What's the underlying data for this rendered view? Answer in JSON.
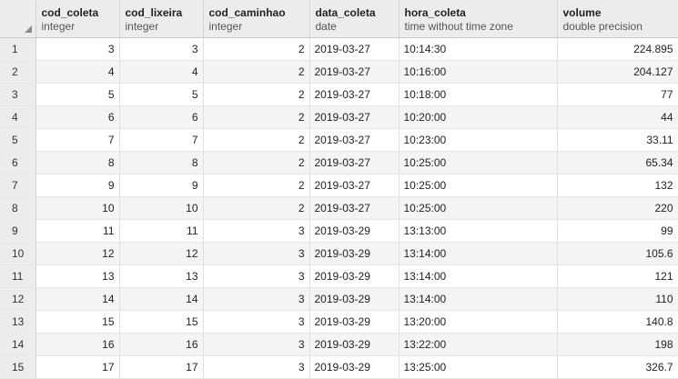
{
  "columns": [
    {
      "name": "cod_coleta",
      "type": "integer"
    },
    {
      "name": "cod_lixeira",
      "type": "integer"
    },
    {
      "name": "cod_caminhao",
      "type": "integer"
    },
    {
      "name": "data_coleta",
      "type": "date"
    },
    {
      "name": "hora_coleta",
      "type": "time without time zone"
    },
    {
      "name": "volume",
      "type": "double precision"
    }
  ],
  "rows": [
    {
      "n": "1",
      "cells": [
        "3",
        "3",
        "2",
        "2019-03-27",
        "10:14:30",
        "224.895"
      ]
    },
    {
      "n": "2",
      "cells": [
        "4",
        "4",
        "2",
        "2019-03-27",
        "10:16:00",
        "204.127"
      ]
    },
    {
      "n": "3",
      "cells": [
        "5",
        "5",
        "2",
        "2019-03-27",
        "10:18:00",
        "77"
      ]
    },
    {
      "n": "4",
      "cells": [
        "6",
        "6",
        "2",
        "2019-03-27",
        "10:20:00",
        "44"
      ]
    },
    {
      "n": "5",
      "cells": [
        "7",
        "7",
        "2",
        "2019-03-27",
        "10:23:00",
        "33.11"
      ]
    },
    {
      "n": "6",
      "cells": [
        "8",
        "8",
        "2",
        "2019-03-27",
        "10:25:00",
        "65.34"
      ]
    },
    {
      "n": "7",
      "cells": [
        "9",
        "9",
        "2",
        "2019-03-27",
        "10:25:00",
        "132"
      ]
    },
    {
      "n": "8",
      "cells": [
        "10",
        "10",
        "2",
        "2019-03-27",
        "10:25:00",
        "220"
      ]
    },
    {
      "n": "9",
      "cells": [
        "11",
        "11",
        "3",
        "2019-03-29",
        "13:13:00",
        "99"
      ]
    },
    {
      "n": "10",
      "cells": [
        "12",
        "12",
        "3",
        "2019-03-29",
        "13:14:00",
        "105.6"
      ]
    },
    {
      "n": "11",
      "cells": [
        "13",
        "13",
        "3",
        "2019-03-29",
        "13:14:00",
        "121"
      ]
    },
    {
      "n": "12",
      "cells": [
        "14",
        "14",
        "3",
        "2019-03-29",
        "13:14:00",
        "110"
      ]
    },
    {
      "n": "13",
      "cells": [
        "15",
        "15",
        "3",
        "2019-03-29",
        "13:20:00",
        "140.8"
      ]
    },
    {
      "n": "14",
      "cells": [
        "16",
        "16",
        "3",
        "2019-03-29",
        "13:22:00",
        "198"
      ]
    },
    {
      "n": "15",
      "cells": [
        "17",
        "17",
        "3",
        "2019-03-29",
        "13:25:00",
        "326.7"
      ]
    }
  ]
}
